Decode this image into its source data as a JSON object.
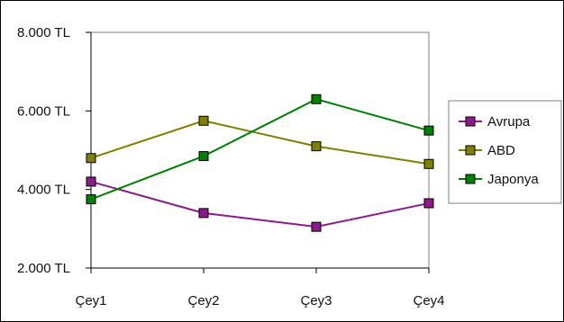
{
  "chart_data": {
    "type": "line",
    "title": "",
    "xlabel": "",
    "ylabel": "",
    "categories": [
      "Çey1",
      "Çey2",
      "Çey3",
      "Çey4"
    ],
    "y_ticks": [
      "2.000 TL",
      "4.000 TL",
      "6.000 TL",
      "8.000 TL"
    ],
    "ylim": [
      2000,
      8000
    ],
    "grid": false,
    "legend_position": "right",
    "series": [
      {
        "name": "Avrupa",
        "color": "#8b1a8b",
        "values": [
          4200,
          3400,
          3050,
          3650
        ]
      },
      {
        "name": "ABD",
        "color": "#808000",
        "values": [
          4800,
          5750,
          5100,
          4650
        ]
      },
      {
        "name": "Japonya",
        "color": "#008000",
        "values": [
          3750,
          4850,
          6300,
          5500
        ]
      }
    ]
  }
}
